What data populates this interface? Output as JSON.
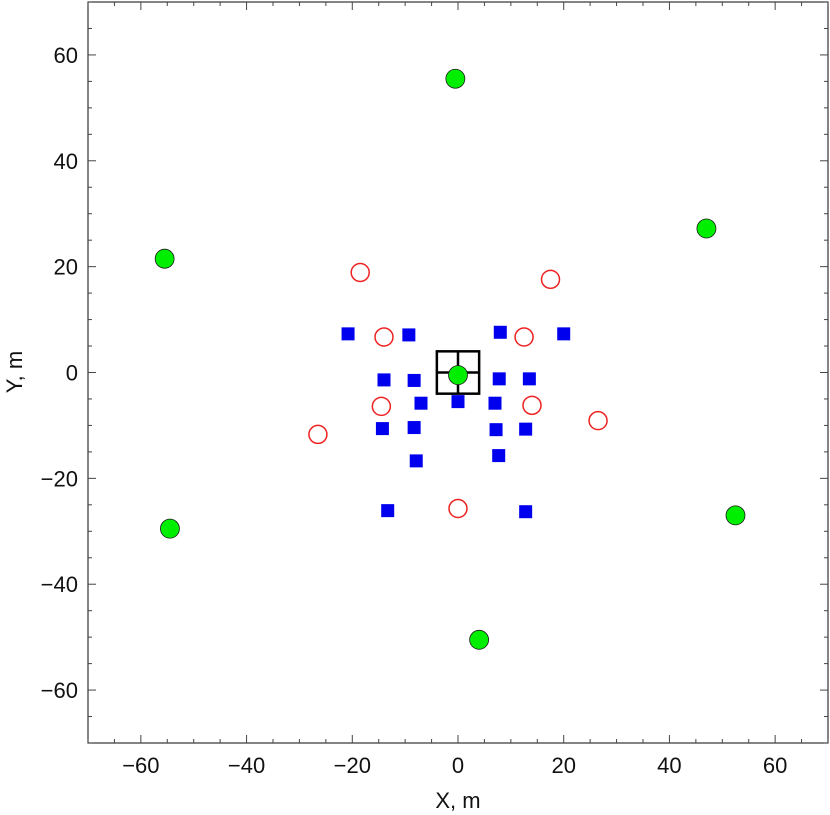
{
  "chart_data": {
    "type": "scatter",
    "title": "",
    "xlabel": "X, m",
    "ylabel": "Y, m",
    "xlim": [
      -70,
      70
    ],
    "ylim": [
      -70,
      70
    ],
    "x_ticks": [
      -60,
      -40,
      -20,
      0,
      20,
      40,
      60
    ],
    "y_ticks": [
      -60,
      -40,
      -20,
      0,
      20,
      40,
      60
    ],
    "x_tick_labels": [
      "−60",
      "−40",
      "−20",
      "0",
      "20",
      "40",
      "60"
    ],
    "y_tick_labels": [
      "−60",
      "−40",
      "−20",
      "0",
      "20",
      "40",
      "60"
    ],
    "grid": false,
    "legend": "none",
    "series": [
      {
        "marker": "filled-circle",
        "color": "#00ee00",
        "points": [
          [
            -0.5,
            55.5
          ],
          [
            47,
            27.2
          ],
          [
            -55.5,
            21.5
          ],
          [
            0,
            -0.5
          ],
          [
            -54.5,
            -29.5
          ],
          [
            52.5,
            -27
          ],
          [
            4,
            -50.5
          ]
        ]
      },
      {
        "marker": "filled-square",
        "color": "#0000ee",
        "points": [
          [
            -20.8,
            7.3
          ],
          [
            -9.3,
            7.1
          ],
          [
            8,
            7.6
          ],
          [
            20,
            7.3
          ],
          [
            -14,
            -1.4
          ],
          [
            -8.3,
            -1.5
          ],
          [
            7.8,
            -1.2
          ],
          [
            13.5,
            -1.2
          ],
          [
            -7,
            -5.8
          ],
          [
            0,
            -5.5
          ],
          [
            7,
            -5.8
          ],
          [
            -14.3,
            -10.6
          ],
          [
            -8.3,
            -10.4
          ],
          [
            7.2,
            -10.8
          ],
          [
            12.8,
            -10.7
          ],
          [
            -7.9,
            -16.7
          ],
          [
            7.7,
            -15.7
          ],
          [
            -13.3,
            -26.1
          ],
          [
            12.8,
            -26.3
          ]
        ]
      },
      {
        "marker": "open-circle",
        "color": "#ee2222",
        "points": [
          [
            -18.5,
            18.9
          ],
          [
            17.5,
            17.6
          ],
          [
            -14,
            6.7
          ],
          [
            12.5,
            6.7
          ],
          [
            -14.5,
            -6.4
          ],
          [
            14,
            -6.2
          ],
          [
            -26.5,
            -11.7
          ],
          [
            26.5,
            -9.1
          ],
          [
            0,
            -25.7
          ]
        ]
      }
    ],
    "annotations": [
      {
        "shape": "square-with-cross",
        "center": [
          0,
          0
        ],
        "half_size": 4,
        "color": "#000000"
      }
    ]
  }
}
